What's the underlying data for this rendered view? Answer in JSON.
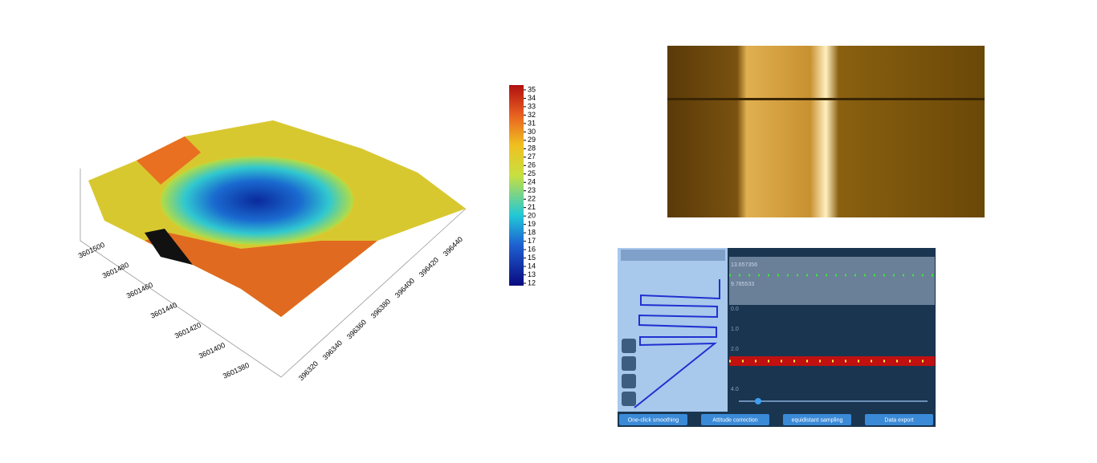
{
  "terrain": {
    "colorbar_ticks": [
      35,
      34,
      33,
      32,
      31,
      30,
      29,
      28,
      27,
      26,
      25,
      24,
      23,
      22,
      21,
      20,
      19,
      18,
      17,
      16,
      15,
      14,
      13,
      12
    ],
    "y_axis_ticks": [
      "3601500",
      "3601480",
      "3601460",
      "3601440",
      "3601420",
      "3601400",
      "3601380"
    ],
    "x_axis_ticks": [
      "396320",
      "396340",
      "396360",
      "396380",
      "396400",
      "396420",
      "396440"
    ]
  },
  "sonar_app": {
    "upper_values": [
      "13.657356",
      "9.785533"
    ],
    "depth_ticks": [
      "0.0",
      "1.0",
      "2.0",
      "4.0"
    ],
    "buttons": [
      "One-click smoothing",
      "Attitude correction",
      "equidistant sampling",
      "Data export"
    ]
  }
}
